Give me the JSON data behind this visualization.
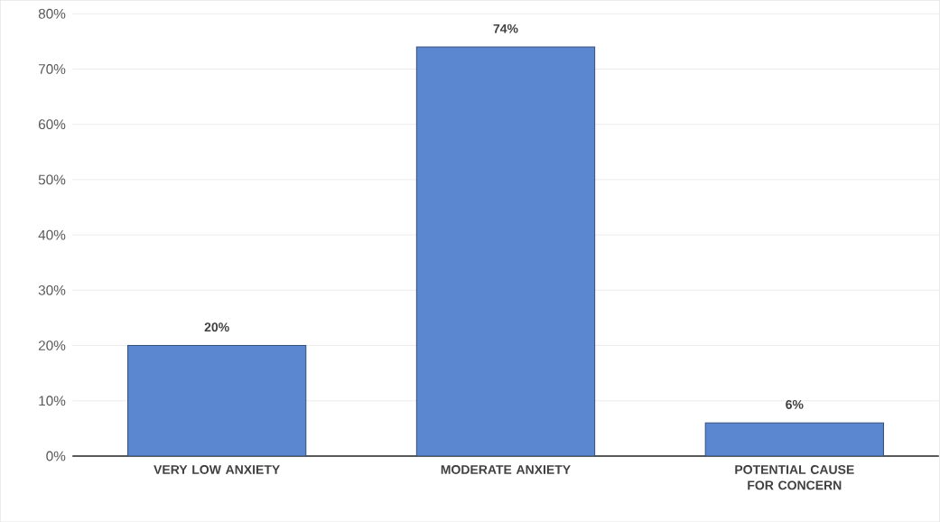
{
  "chart_data": {
    "type": "bar",
    "categories": [
      "VERY LOW ANXIETY",
      "MODERATE ANXIETY",
      "POTENTIAL CAUSE FOR CONCERN"
    ],
    "values": [
      20,
      74,
      6
    ],
    "value_labels": [
      "20%",
      "74%",
      "6%"
    ],
    "color": "#5b87d1",
    "ylim": [
      0,
      80
    ],
    "yticks": [
      {
        "value": 0,
        "label": "0%"
      },
      {
        "value": 10,
        "label": "10%"
      },
      {
        "value": 20,
        "label": "20%"
      },
      {
        "value": 30,
        "label": "30%"
      },
      {
        "value": 40,
        "label": "40%"
      },
      {
        "value": 50,
        "label": "50%"
      },
      {
        "value": 60,
        "label": "60%"
      },
      {
        "value": 70,
        "label": "70%"
      },
      {
        "value": 80,
        "label": "80%"
      }
    ],
    "grid": "y"
  }
}
